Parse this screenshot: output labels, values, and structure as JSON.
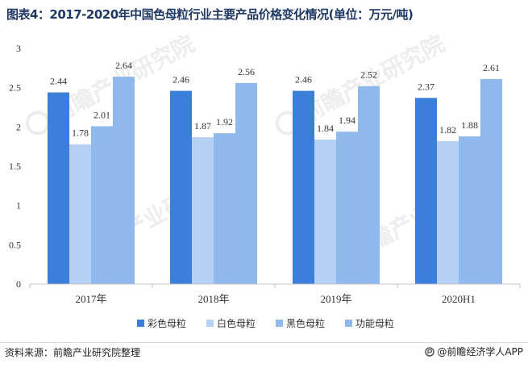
{
  "title": "图表4：2017-2020年中国色母粒行业主要产品价格变化情况(单位：万元/吨)",
  "source": "资料来源：前瞻产业研究院整理",
  "brand": "@前瞻经济学人APP",
  "watermark": "前瞻产业研究院",
  "colors": {
    "background": "#ffffff",
    "title": "#1f3864",
    "axis": "#bfbfbf",
    "text": "#333333"
  },
  "chart_data": {
    "type": "bar",
    "categories": [
      "2017年",
      "2018年",
      "2019年",
      "2020H1"
    ],
    "series": [
      {
        "name": "彩色母粒",
        "color": "#3c7fdb",
        "values": [
          2.44,
          2.46,
          2.46,
          2.37
        ]
      },
      {
        "name": "白色母粒",
        "color": "#b6d1f3",
        "values": [
          1.78,
          1.87,
          1.84,
          1.82
        ]
      },
      {
        "name": "黑色母粒",
        "color": "#90b9ee",
        "values": [
          2.01,
          1.92,
          1.94,
          1.88
        ]
      },
      {
        "name": "功能母粒",
        "color": "#8fb8ee",
        "values": [
          2.64,
          2.56,
          2.52,
          2.61
        ]
      }
    ],
    "yticks": [
      "0",
      "0.5",
      "1",
      "1.5",
      "2",
      "2.5",
      "3"
    ],
    "ylim": [
      0,
      3
    ],
    "grid": false,
    "legend": "bottom"
  }
}
